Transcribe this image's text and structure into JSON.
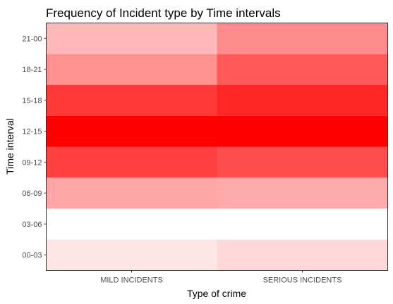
{
  "chart_data": {
    "type": "heatmap",
    "title": "Frequency of Incident type by Time intervals",
    "xlabel": "Type of crime",
    "ylabel": "Time interval",
    "x_categories": [
      "MILD INCIDENTS",
      "SERIOUS INCIDENTS"
    ],
    "y_categories": [
      "00-03",
      "03-06",
      "06-09",
      "09-12",
      "12-15",
      "15-18",
      "18-21",
      "21-00"
    ],
    "values": [
      [
        0.1,
        0.15
      ],
      [
        0.0,
        0.0
      ],
      [
        0.35,
        0.33
      ],
      [
        0.75,
        0.7
      ],
      [
        1.0,
        1.0
      ],
      [
        0.78,
        0.85
      ],
      [
        0.43,
        0.65
      ],
      [
        0.28,
        0.45
      ]
    ],
    "color_scale": {
      "low": "#ffffff",
      "high": "#ff0000"
    },
    "legend": "none",
    "grid": false
  }
}
